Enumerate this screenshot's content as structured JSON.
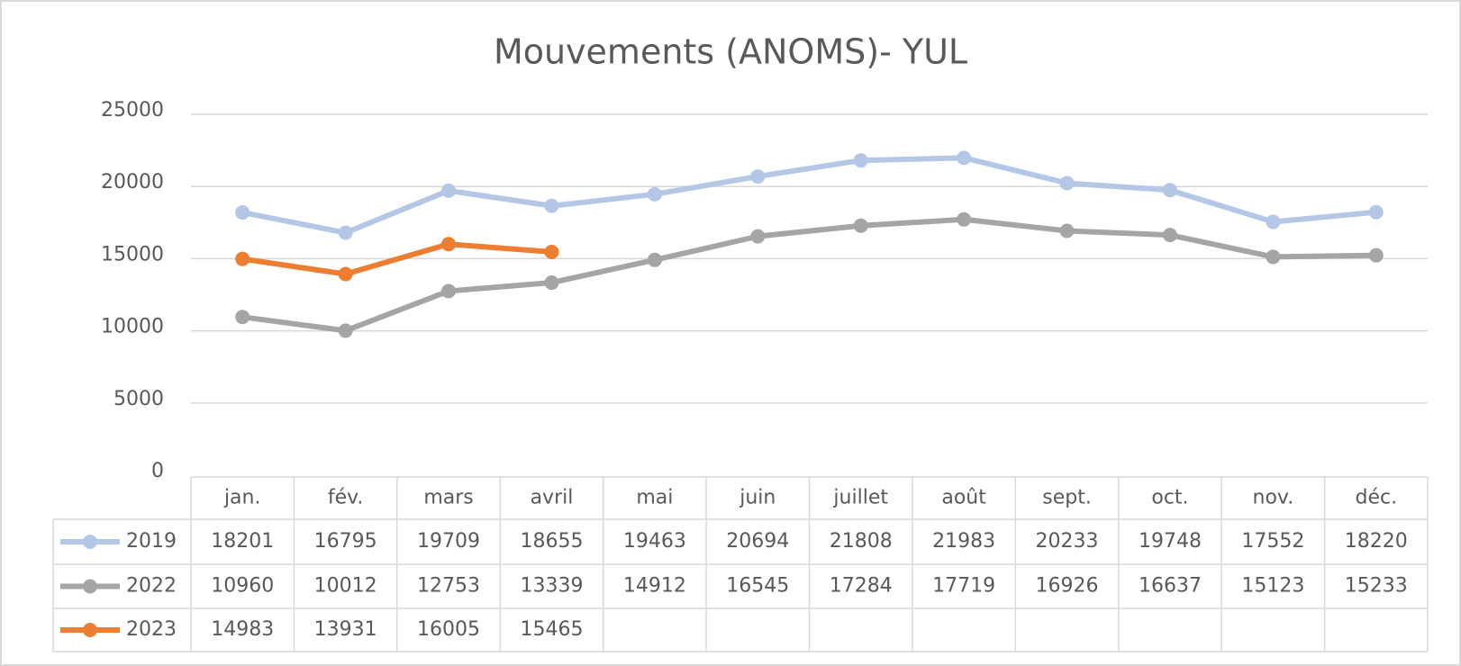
{
  "chart_data": {
    "type": "line",
    "title": "Mouvements (ANOMS)- YUL",
    "categories": [
      "jan.",
      "fév.",
      "mars",
      "avril",
      "mai",
      "juin",
      "juillet",
      "août",
      "sept.",
      "oct.",
      "nov.",
      "déc."
    ],
    "series": [
      {
        "name": "2019",
        "color": "#b4c7e7",
        "values": [
          18201,
          16795,
          19709,
          18655,
          19463,
          20694,
          21808,
          21983,
          20233,
          19748,
          17552,
          18220
        ]
      },
      {
        "name": "2022",
        "color": "#a5a5a5",
        "values": [
          10960,
          10012,
          12753,
          13339,
          14912,
          16545,
          17284,
          17719,
          16926,
          16637,
          15123,
          15233
        ]
      },
      {
        "name": "2023",
        "color": "#ed7d31",
        "values": [
          14983,
          13931,
          16005,
          15465,
          null,
          null,
          null,
          null,
          null,
          null,
          null,
          null
        ]
      }
    ],
    "ylim": [
      0,
      25000
    ],
    "yticks": [
      0,
      5000,
      10000,
      15000,
      20000,
      25000
    ],
    "grid": true,
    "data_table": true
  }
}
